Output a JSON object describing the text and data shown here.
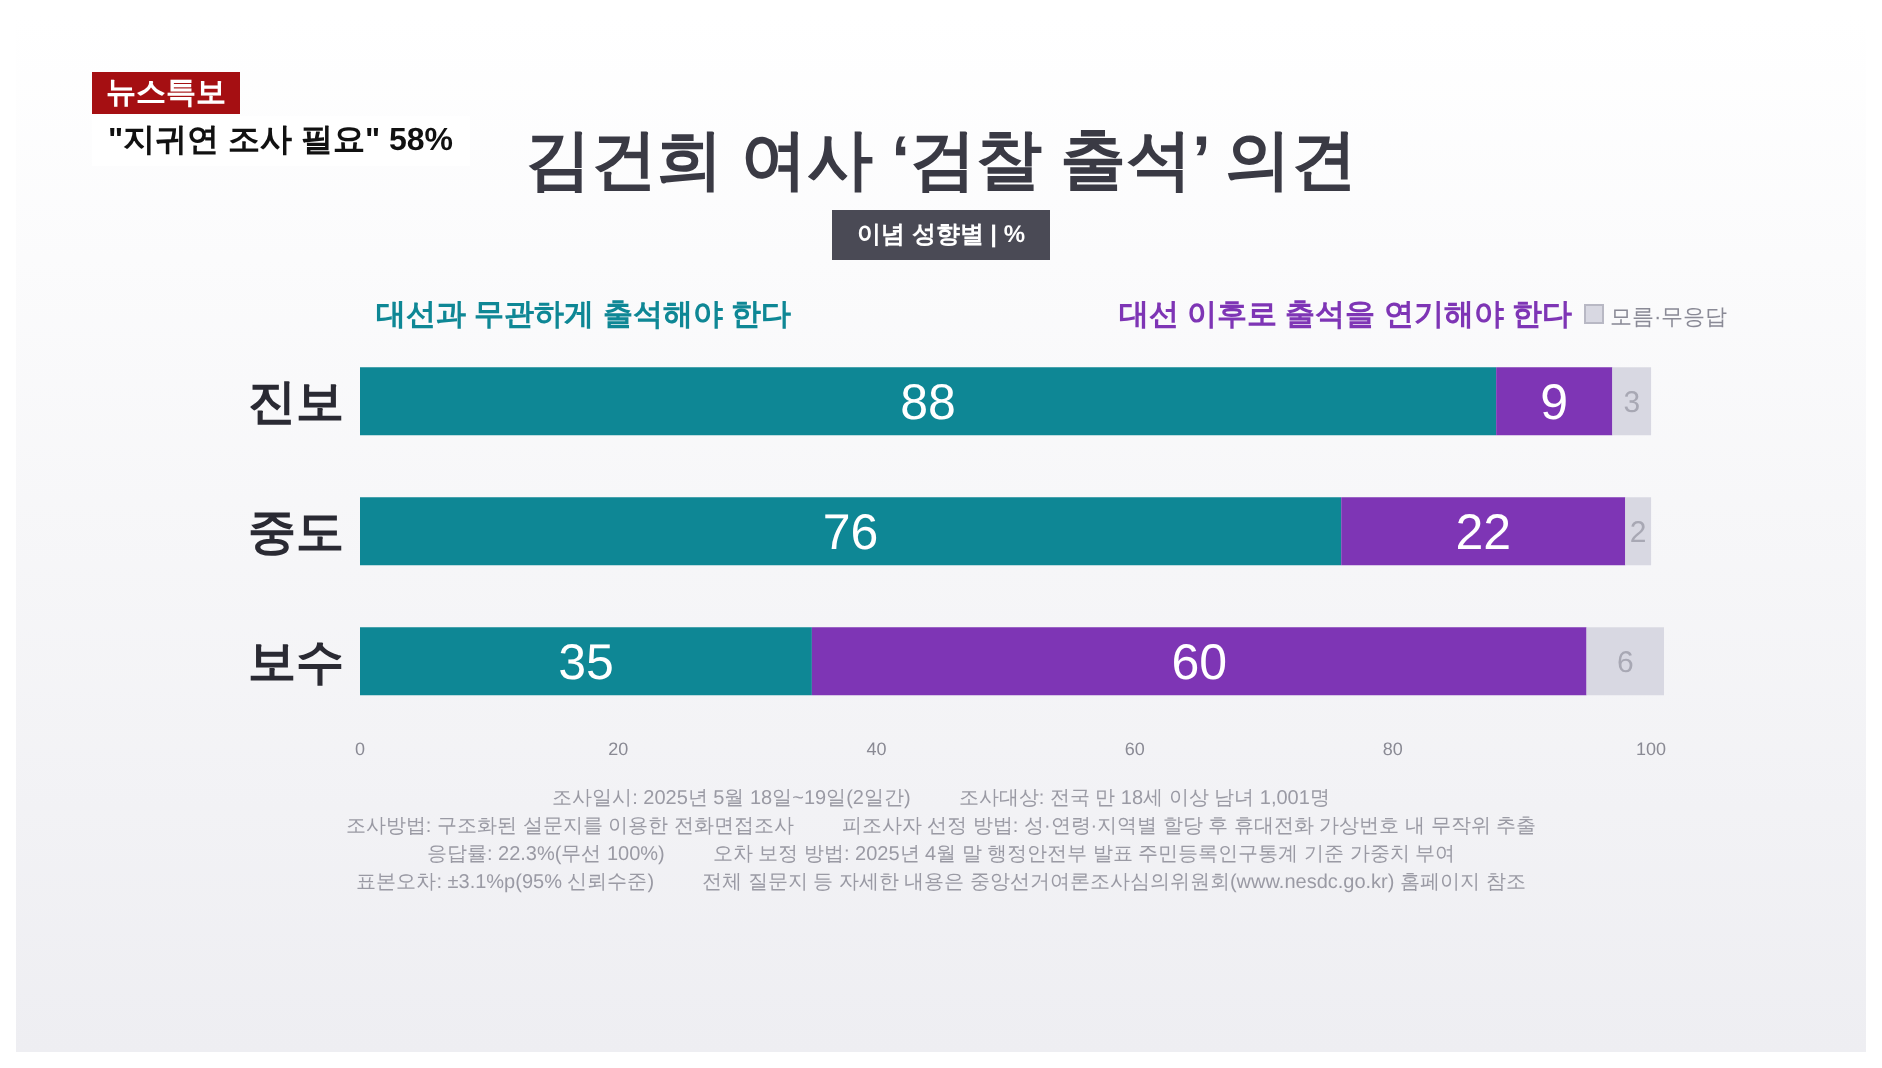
{
  "chart_data": {
    "type": "bar",
    "orientation": "horizontal",
    "stacked": true,
    "title": "김건희 여사 ‘검찰 출석’ 의견",
    "subtitle": "이념 성향별 | %",
    "categories": [
      "진보",
      "중도",
      "보수"
    ],
    "series": [
      {
        "name": "대선과 무관하게 출석해야 한다",
        "color": "#0e8795",
        "values": [
          88,
          76,
          35
        ]
      },
      {
        "name": "대선 이후로 출석을 연기해야 한다",
        "color": "#7e35b5",
        "values": [
          9,
          22,
          60
        ]
      },
      {
        "name": "모름·무응답",
        "color": "#d8d8e2",
        "values": [
          3,
          2,
          6
        ]
      }
    ],
    "xlim": [
      0,
      101
    ],
    "xticks": [
      0,
      20,
      40,
      60,
      80,
      100
    ],
    "data_labels": true,
    "legend": "top",
    "grid": false,
    "annotations": [
      "뉴스특보",
      "\"지귀연 조사 필요\" 58%",
      "조사일시: 2025년 5월 18일~19일(2일간)",
      "조사대상: 전국 만 18세 이상 남녀 1,001명",
      "조사방법: 구조화된 설문지를 이용한 전화면접조사",
      "피조사자 선정 방법: 성·연령·지역별 할당 후 휴대전화 가상번호 내 무작위 추출",
      "응답률: 22.3%(무선 100%)",
      "오차 보정 방법: 2025년 4월 말 행정안전부 발표 주민등록인구통계 기준 가중치 부여",
      "표본오차: ±3.1%p(95% 신뢰수준)",
      "전체 질문지 등 자세한 내용은 중앙선거여론조사심의위원회(www.nesdc.go.kr) 홈페이지 참조"
    ]
  }
}
